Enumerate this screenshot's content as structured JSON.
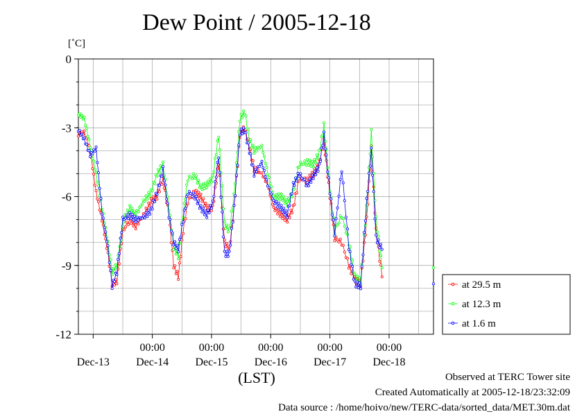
{
  "chart_data": {
    "type": "line",
    "title": "Dew Point / 2005-12-18",
    "ylabel": "[˚C]",
    "xlabel": "(LST)",
    "ylim": [
      -12,
      0
    ],
    "yticks": [
      0,
      -3,
      -6,
      -9,
      -12
    ],
    "xlim_days": [
      12.75,
      18.75
    ],
    "xtick_time_label": "00:00",
    "xticks": [
      "Dec-13",
      "Dec-14",
      "Dec-15",
      "Dec-16",
      "Dec-17",
      "Dec-18"
    ],
    "grid": true,
    "legend_position": "bottom-right, outside plot",
    "series": [
      {
        "name": "at 29.5 m",
        "color": "#ff0000",
        "points": [
          [
            12.75,
            -3.3
          ],
          [
            12.85,
            -3.2
          ],
          [
            12.95,
            -4.0
          ],
          [
            13.05,
            -5.8
          ],
          [
            13.15,
            -7.0
          ],
          [
            13.25,
            -8.5
          ],
          [
            13.32,
            -9.8
          ],
          [
            13.4,
            -9.7
          ],
          [
            13.5,
            -7.5
          ],
          [
            13.62,
            -7.0
          ],
          [
            13.72,
            -7.3
          ],
          [
            13.85,
            -6.8
          ],
          [
            13.98,
            -6.2
          ],
          [
            14.08,
            -6.0
          ],
          [
            14.18,
            -5.2
          ],
          [
            14.28,
            -6.8
          ],
          [
            14.36,
            -9.0
          ],
          [
            14.44,
            -9.5
          ],
          [
            14.52,
            -7.5
          ],
          [
            14.6,
            -6.2
          ],
          [
            14.72,
            -5.8
          ],
          [
            14.82,
            -6.0
          ],
          [
            14.92,
            -6.5
          ],
          [
            15.02,
            -6.5
          ],
          [
            15.12,
            -4.5
          ],
          [
            15.22,
            -8.0
          ],
          [
            15.3,
            -8.3
          ],
          [
            15.38,
            -6.5
          ],
          [
            15.48,
            -3.3
          ],
          [
            15.56,
            -3.0
          ],
          [
            15.64,
            -3.8
          ],
          [
            15.72,
            -4.8
          ],
          [
            15.85,
            -5.0
          ],
          [
            15.95,
            -5.5
          ],
          [
            16.05,
            -6.5
          ],
          [
            16.18,
            -6.8
          ],
          [
            16.28,
            -7.0
          ],
          [
            16.38,
            -6.5
          ],
          [
            16.48,
            -5.2
          ],
          [
            16.62,
            -5.3
          ],
          [
            16.72,
            -5.0
          ],
          [
            16.82,
            -4.5
          ],
          [
            16.9,
            -3.6
          ],
          [
            16.98,
            -5.5
          ],
          [
            17.08,
            -7.8
          ],
          [
            17.2,
            -8.0
          ],
          [
            17.32,
            -9.0
          ],
          [
            17.42,
            -9.6
          ],
          [
            17.52,
            -9.8
          ],
          [
            17.62,
            -7.0
          ],
          [
            17.7,
            -3.9
          ],
          [
            17.78,
            -7.5
          ],
          [
            17.88,
            -9.5
          ]
        ]
      },
      {
        "name": "at 12.3 m",
        "color": "#00ff00",
        "points": [
          [
            12.75,
            -2.4
          ],
          [
            12.85,
            -2.6
          ],
          [
            12.95,
            -3.8
          ],
          [
            13.05,
            -5.0
          ],
          [
            13.15,
            -6.5
          ],
          [
            13.25,
            -8.0
          ],
          [
            13.32,
            -9.3
          ],
          [
            13.4,
            -9.0
          ],
          [
            13.52,
            -7.0
          ],
          [
            13.62,
            -6.5
          ],
          [
            13.72,
            -6.8
          ],
          [
            13.85,
            -6.2
          ],
          [
            13.98,
            -5.8
          ],
          [
            14.08,
            -5.0
          ],
          [
            14.18,
            -4.6
          ],
          [
            14.28,
            -6.5
          ],
          [
            14.36,
            -8.2
          ],
          [
            14.44,
            -8.6
          ],
          [
            14.52,
            -6.8
          ],
          [
            14.6,
            -5.2
          ],
          [
            14.72,
            -5.1
          ],
          [
            14.82,
            -5.6
          ],
          [
            14.92,
            -5.5
          ],
          [
            15.02,
            -5.2
          ],
          [
            15.12,
            -3.3
          ],
          [
            15.22,
            -7.2
          ],
          [
            15.3,
            -7.5
          ],
          [
            15.38,
            -6.0
          ],
          [
            15.48,
            -2.6
          ],
          [
            15.56,
            -2.3
          ],
          [
            15.64,
            -3.5
          ],
          [
            15.72,
            -4.0
          ],
          [
            15.85,
            -3.8
          ],
          [
            15.95,
            -5.0
          ],
          [
            16.05,
            -6.0
          ],
          [
            16.18,
            -6.0
          ],
          [
            16.28,
            -6.3
          ],
          [
            16.38,
            -5.8
          ],
          [
            16.48,
            -4.6
          ],
          [
            16.62,
            -4.5
          ],
          [
            16.72,
            -4.6
          ],
          [
            16.82,
            -4.1
          ],
          [
            16.9,
            -2.9
          ],
          [
            16.98,
            -5.2
          ],
          [
            17.08,
            -7.5
          ],
          [
            17.2,
            -6.8
          ],
          [
            17.32,
            -8.0
          ],
          [
            17.42,
            -9.5
          ],
          [
            17.52,
            -9.7
          ],
          [
            17.62,
            -6.5
          ],
          [
            17.7,
            -3.2
          ],
          [
            17.78,
            -7.0
          ],
          [
            17.88,
            -9.1
          ],
          [
            18.75,
            -9.1
          ]
        ]
      },
      {
        "name": "at 1.6 m",
        "color": "#0000ff",
        "points": [
          [
            12.75,
            -3.1
          ],
          [
            12.85,
            -3.5
          ],
          [
            12.95,
            -4.2
          ],
          [
            13.05,
            -3.9
          ],
          [
            13.15,
            -6.7
          ],
          [
            13.25,
            -8.2
          ],
          [
            13.32,
            -9.9
          ],
          [
            13.4,
            -9.3
          ],
          [
            13.5,
            -7.0
          ],
          [
            13.62,
            -6.8
          ],
          [
            13.72,
            -7.0
          ],
          [
            13.85,
            -6.9
          ],
          [
            13.98,
            -6.6
          ],
          [
            14.08,
            -5.8
          ],
          [
            14.18,
            -4.8
          ],
          [
            14.28,
            -6.8
          ],
          [
            14.36,
            -8.0
          ],
          [
            14.44,
            -8.3
          ],
          [
            14.52,
            -7.0
          ],
          [
            14.6,
            -5.8
          ],
          [
            14.72,
            -6.0
          ],
          [
            14.82,
            -6.5
          ],
          [
            14.92,
            -6.8
          ],
          [
            15.02,
            -6.3
          ],
          [
            15.12,
            -4.2
          ],
          [
            15.22,
            -8.5
          ],
          [
            15.3,
            -8.5
          ],
          [
            15.38,
            -6.5
          ],
          [
            15.48,
            -3.2
          ],
          [
            15.56,
            -3.1
          ],
          [
            15.64,
            -4.0
          ],
          [
            15.72,
            -5.0
          ],
          [
            15.85,
            -4.5
          ],
          [
            15.95,
            -5.5
          ],
          [
            16.05,
            -6.2
          ],
          [
            16.18,
            -6.5
          ],
          [
            16.28,
            -6.8
          ],
          [
            16.38,
            -5.5
          ],
          [
            16.48,
            -5.0
          ],
          [
            16.62,
            -5.5
          ],
          [
            16.72,
            -5.1
          ],
          [
            16.82,
            -4.7
          ],
          [
            16.9,
            -3.3
          ],
          [
            16.98,
            -5.3
          ],
          [
            17.08,
            -7.6
          ],
          [
            17.2,
            -4.8
          ],
          [
            17.32,
            -8.2
          ],
          [
            17.42,
            -9.8
          ],
          [
            17.52,
            -9.9
          ],
          [
            17.62,
            -6.2
          ],
          [
            17.7,
            -4.0
          ],
          [
            17.78,
            -7.8
          ],
          [
            17.88,
            -8.3
          ],
          [
            18.75,
            -9.8
          ]
        ]
      }
    ]
  },
  "footer": {
    "line1": "Observed at TERC Tower site",
    "line2": "Created Automatically at 2005-12-18/23:32:09",
    "line3": "Data source : /home/hoivo/new/TERC-data/sorted_data/MET.30m.dat"
  }
}
